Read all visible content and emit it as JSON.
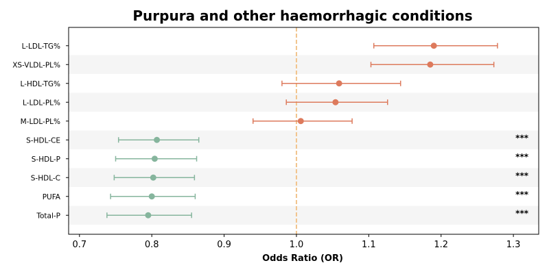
{
  "chart_data": {
    "type": "scatter",
    "title": "Purpura and other haemorrhagic conditions",
    "xlabel": "Odds Ratio (OR)",
    "ylabel": "",
    "xlim": [
      0.685,
      1.335
    ],
    "xticks": [
      "0.7",
      "0.8",
      "0.9",
      "1.0",
      "1.1",
      "1.2",
      "1.3"
    ],
    "reference_line": 1.0,
    "reference_color": "#f2c48d",
    "colors": {
      "positive": "#dd7a5c",
      "negative": "#86b59d"
    },
    "stripe_color": "#f5f5f5",
    "legend": "none",
    "rows": [
      {
        "label": "L-LDL-TG%",
        "or": 1.19,
        "lo": 1.107,
        "hi": 1.278,
        "sig": ""
      },
      {
        "label": "XS-VLDL-PL%",
        "or": 1.185,
        "lo": 1.103,
        "hi": 1.273,
        "sig": ""
      },
      {
        "label": "L-HDL-TG%",
        "or": 1.059,
        "lo": 0.98,
        "hi": 1.144,
        "sig": ""
      },
      {
        "label": "L-LDL-PL%",
        "or": 1.054,
        "lo": 0.986,
        "hi": 1.126,
        "sig": ""
      },
      {
        "label": "M-LDL-PL%",
        "or": 1.006,
        "lo": 0.94,
        "hi": 1.077,
        "sig": ""
      },
      {
        "label": "S-HDL-CE",
        "or": 0.807,
        "lo": 0.754,
        "hi": 0.865,
        "sig": "***"
      },
      {
        "label": "S-HDL-P",
        "or": 0.804,
        "lo": 0.75,
        "hi": 0.862,
        "sig": "***"
      },
      {
        "label": "S-HDL-C",
        "or": 0.802,
        "lo": 0.748,
        "hi": 0.859,
        "sig": "***"
      },
      {
        "label": "PUFA",
        "or": 0.8,
        "lo": 0.743,
        "hi": 0.86,
        "sig": "***"
      },
      {
        "label": "Total-P",
        "or": 0.795,
        "lo": 0.738,
        "hi": 0.855,
        "sig": "***"
      }
    ]
  }
}
